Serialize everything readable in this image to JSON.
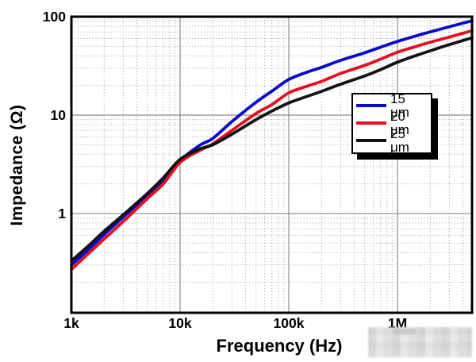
{
  "figure": {
    "x_axis_title": "Frequency (Hz)",
    "y_axis_title": "Impedance (Ω)"
  },
  "chart_data": {
    "type": "line",
    "title": "",
    "xlabel": "Frequency (Hz)",
    "ylabel": "Impedance (Ω)",
    "x_scale": "log",
    "y_scale": "log",
    "xlim": [
      1000,
      4850000
    ],
    "ylim": [
      0.098,
      100
    ],
    "grid": "major solid gray, minor dotted gray, log decades",
    "legend_position": "inside right-middle",
    "frame_color": "#000000",
    "major_grid_color": "#8a8a8a",
    "minor_grid_color": "#a9a9a9",
    "x_ticks": [
      {
        "value": 1000,
        "label": "1k"
      },
      {
        "value": 10000,
        "label": "10k"
      },
      {
        "value": 100000,
        "label": "100k"
      },
      {
        "value": 1000000,
        "label": "1M"
      }
    ],
    "y_ticks": [
      {
        "value": 100,
        "label": "100"
      },
      {
        "value": 10,
        "label": "10"
      },
      {
        "value": 1,
        "label": "1"
      }
    ],
    "series": [
      {
        "name": "15 μm",
        "color": "#0a0ace",
        "points": [
          [
            1000,
            0.3
          ],
          [
            1500,
            0.45
          ],
          [
            2000,
            0.61
          ],
          [
            3000,
            0.92
          ],
          [
            5000,
            1.55
          ],
          [
            7000,
            2.2
          ],
          [
            10000,
            3.45
          ],
          [
            15000,
            4.9
          ],
          [
            20000,
            5.8
          ],
          [
            30000,
            8.6
          ],
          [
            50000,
            13.5
          ],
          [
            70000,
            17.5
          ],
          [
            100000,
            23
          ],
          [
            150000,
            27.5
          ],
          [
            200000,
            30.5
          ],
          [
            300000,
            36
          ],
          [
            500000,
            43
          ],
          [
            700000,
            49
          ],
          [
            1000000,
            56
          ],
          [
            1500000,
            64
          ],
          [
            2000000,
            70
          ],
          [
            3000000,
            79
          ],
          [
            4850000,
            91
          ]
        ]
      },
      {
        "name": "20 μm",
        "color": "#e21020",
        "points": [
          [
            1000,
            0.27
          ],
          [
            1500,
            0.41
          ],
          [
            2000,
            0.55
          ],
          [
            3000,
            0.83
          ],
          [
            5000,
            1.42
          ],
          [
            7000,
            2.0
          ],
          [
            10000,
            3.3
          ],
          [
            15000,
            4.35
          ],
          [
            20000,
            5.1
          ],
          [
            30000,
            7.0
          ],
          [
            50000,
            10.4
          ],
          [
            70000,
            12.8
          ],
          [
            100000,
            16.8
          ],
          [
            150000,
            19.8
          ],
          [
            200000,
            22
          ],
          [
            300000,
            26.5
          ],
          [
            500000,
            32
          ],
          [
            700000,
            37
          ],
          [
            1000000,
            43.5
          ],
          [
            1500000,
            50
          ],
          [
            2000000,
            55
          ],
          [
            3000000,
            62
          ],
          [
            4850000,
            72
          ]
        ]
      },
      {
        "name": "25 μm",
        "color": "#131313",
        "points": [
          [
            1000,
            0.33
          ],
          [
            1500,
            0.49
          ],
          [
            2000,
            0.66
          ],
          [
            3000,
            0.97
          ],
          [
            5000,
            1.6
          ],
          [
            7000,
            2.3
          ],
          [
            10000,
            3.55
          ],
          [
            15000,
            4.5
          ],
          [
            20000,
            5.0
          ],
          [
            30000,
            6.4
          ],
          [
            50000,
            9.0
          ],
          [
            70000,
            11.0
          ],
          [
            100000,
            13.3
          ],
          [
            150000,
            15.6
          ],
          [
            200000,
            17.4
          ],
          [
            300000,
            20.6
          ],
          [
            500000,
            25
          ],
          [
            700000,
            29
          ],
          [
            1000000,
            34.5
          ],
          [
            1500000,
            40.5
          ],
          [
            2000000,
            45
          ],
          [
            3000000,
            52
          ],
          [
            4850000,
            61
          ]
        ]
      }
    ]
  }
}
